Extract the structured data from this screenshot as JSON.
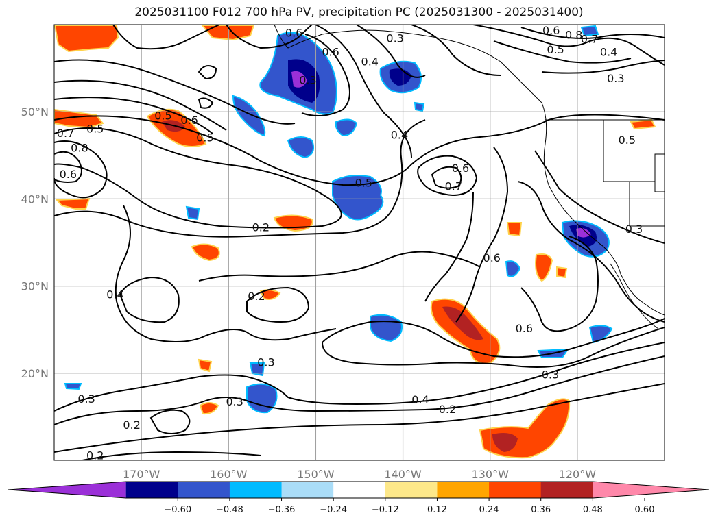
{
  "title": "2025031100 F012 700 hPa PV, precipitation PC (2025031300 - 2025031400)",
  "colors": {
    "neg_060": "#9b30d8",
    "neg_048": "#00008b",
    "neg_036": "#3355cc",
    "neg_024": "#00bbff",
    "neg_012": "#aaddf8",
    "pos_012": "#fde88a",
    "pos_024": "#ffa500",
    "pos_036": "#ff4500",
    "pos_048": "#b22222",
    "pos_060": "#ff88aa",
    "contour": "#000000",
    "grid": "#a0a0a0",
    "coast": "#000000"
  },
  "chart_data": {
    "type": "contour-map",
    "title": "2025031100 F012 700 hPa PV, precipitation PC (2025031300 - 2025031400)",
    "lon_range": [
      -180,
      -110
    ],
    "lat_range": [
      10,
      60
    ],
    "lat_ticks": [
      "20°N",
      "30°N",
      "40°N",
      "50°N"
    ],
    "lat_values": [
      20,
      30,
      40,
      50
    ],
    "lon_ticks": [
      "170°W",
      "160°W",
      "150°W",
      "140°W",
      "130°W",
      "120°W"
    ],
    "lon_values": [
      -170,
      -160,
      -150,
      -140,
      -130,
      -120
    ],
    "grid": true,
    "colorbar": {
      "orientation": "horizontal",
      "ticks": [
        "−0.60",
        "−0.48",
        "−0.36",
        "−0.24",
        "−0.12",
        "0.12",
        "0.24",
        "0.36",
        "0.48",
        "0.60"
      ],
      "tick_values": [
        -0.6,
        -0.48,
        -0.36,
        -0.24,
        -0.12,
        0.12,
        0.24,
        0.36,
        0.48,
        0.6
      ],
      "extend": "both"
    },
    "contour_labels": [
      {
        "text": "0.5",
        "lon": -167.5,
        "lat": 49.5
      },
      {
        "text": "0.6",
        "lon": -164.5,
        "lat": 49.0
      },
      {
        "text": "0.5",
        "lon": -162.7,
        "lat": 47.0
      },
      {
        "text": "0.5",
        "lon": -175.3,
        "lat": 48.0
      },
      {
        "text": "0.7",
        "lon": -178.7,
        "lat": 47.5
      },
      {
        "text": "0.8",
        "lon": -177.1,
        "lat": 45.8
      },
      {
        "text": "0.6",
        "lon": -178.4,
        "lat": 42.8
      },
      {
        "text": "0.6",
        "lon": -148.3,
        "lat": 56.8
      },
      {
        "text": "0.4",
        "lon": -143.8,
        "lat": 55.7
      },
      {
        "text": "0.3",
        "lon": -140.9,
        "lat": 58.4
      },
      {
        "text": "0.3",
        "lon": -150.9,
        "lat": 53.6
      },
      {
        "text": "0.6",
        "lon": -152.5,
        "lat": 59.0
      },
      {
        "text": "0.4",
        "lon": -140.4,
        "lat": 47.3
      },
      {
        "text": "0.6",
        "lon": -133.4,
        "lat": 43.5
      },
      {
        "text": "0.7",
        "lon": -134.2,
        "lat": 41.4
      },
      {
        "text": "0.5",
        "lon": -144.5,
        "lat": 41.8
      },
      {
        "text": "0.2",
        "lon": -156.3,
        "lat": 36.7
      },
      {
        "text": "0.6",
        "lon": -129.8,
        "lat": 33.2
      },
      {
        "text": "0.4",
        "lon": -173.0,
        "lat": 29.0
      },
      {
        "text": "0.2",
        "lon": -156.8,
        "lat": 28.8
      },
      {
        "text": "0.3",
        "lon": -155.7,
        "lat": 21.2
      },
      {
        "text": "0.6",
        "lon": -126.1,
        "lat": 25.1
      },
      {
        "text": "0.3",
        "lon": -123.1,
        "lat": 19.8
      },
      {
        "text": "0.4",
        "lon": -138.0,
        "lat": 16.9
      },
      {
        "text": "0.2",
        "lon": -134.9,
        "lat": 15.8
      },
      {
        "text": "0.3",
        "lon": -176.3,
        "lat": 17.0
      },
      {
        "text": "0.3",
        "lon": -159.3,
        "lat": 16.7
      },
      {
        "text": "0.2",
        "lon": -171.1,
        "lat": 14.0
      },
      {
        "text": "0.2",
        "lon": -175.3,
        "lat": 10.5
      },
      {
        "text": "0.6",
        "lon": -123.0,
        "lat": 59.3
      },
      {
        "text": "0.8",
        "lon": -120.4,
        "lat": 58.8
      },
      {
        "text": "0.7",
        "lon": -118.6,
        "lat": 58.3
      },
      {
        "text": "0.5",
        "lon": -122.5,
        "lat": 57.1
      },
      {
        "text": "0.4",
        "lon": -116.4,
        "lat": 56.8
      },
      {
        "text": "0.3",
        "lon": -115.6,
        "lat": 53.8
      },
      {
        "text": "0.5",
        "lon": -114.3,
        "lat": 46.7
      },
      {
        "text": "0.3",
        "lon": -113.5,
        "lat": 36.5
      }
    ]
  }
}
